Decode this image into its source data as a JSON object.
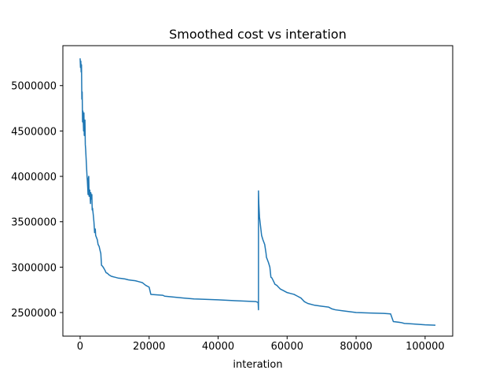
{
  "chart_data": {
    "type": "line",
    "title": "Smoothed cost vs interation",
    "xlabel": "interation",
    "ylabel": "",
    "xlim": [
      -5000,
      108000
    ],
    "ylim": [
      2240000,
      5440000
    ],
    "grid": false,
    "legend": "none",
    "x_ticks": [
      0,
      20000,
      40000,
      60000,
      80000,
      100000
    ],
    "x_tick_labels": [
      "0",
      "20000",
      "40000",
      "60000",
      "80000",
      "100000"
    ],
    "y_ticks": [
      2500000,
      3000000,
      3500000,
      4000000,
      4500000,
      5000000
    ],
    "y_tick_labels": [
      "2500000",
      "3000000",
      "3500000",
      "4000000",
      "4500000",
      "5000000"
    ],
    "series": [
      {
        "color": "#1f77b4",
        "x": [
          0,
          100,
          200,
          300,
          400,
          500,
          600,
          700,
          800,
          1000,
          1100,
          1200,
          1400,
          1500,
          1600,
          1800,
          2000,
          2100,
          2300,
          2400,
          2500,
          2600,
          2800,
          3000,
          3100,
          3200,
          3400,
          3500,
          3600,
          3800,
          4000,
          4200,
          4400,
          4500,
          4700,
          5000,
          5200,
          5500,
          5800,
          6000,
          6200,
          6500,
          7000,
          7400,
          7500,
          8000,
          8200,
          8600,
          9000,
          9500,
          10000,
          11000,
          12000,
          13000,
          14000,
          15000,
          16000,
          17000,
          18000,
          19000,
          20000,
          20500,
          24000,
          24500,
          30000,
          33000,
          40000,
          45000,
          51000,
          51600,
          51700,
          51700,
          51800,
          52000,
          52300,
          52600,
          53000,
          53500,
          53900,
          54000,
          54300,
          54600,
          55000,
          55300,
          55600,
          56000,
          56500,
          57000,
          57500,
          58000,
          59000,
          60000,
          61000,
          62000,
          63000,
          64000,
          65000,
          66000,
          68000,
          70000,
          72000,
          73000,
          74000,
          76000,
          78000,
          80000,
          84000,
          88000,
          90000,
          90700,
          90800,
          93000,
          94000,
          96000,
          98000,
          100000,
          103000
        ],
        "y": [
          5300000,
          5200000,
          5270000,
          5150000,
          5230000,
          4850000,
          4930000,
          4600000,
          4720000,
          4500000,
          4700000,
          4450000,
          4620000,
          4350000,
          4300000,
          4150000,
          4000000,
          3950000,
          3800000,
          3980000,
          4000000,
          3780000,
          3850000,
          3700000,
          3820000,
          3750000,
          3800000,
          3630000,
          3650000,
          3580000,
          3500000,
          3380000,
          3420000,
          3350000,
          3330000,
          3300000,
          3250000,
          3230000,
          3180000,
          3150000,
          3020000,
          3010000,
          2980000,
          2950000,
          2940000,
          2930000,
          2920000,
          2910000,
          2900000,
          2895000,
          2890000,
          2880000,
          2875000,
          2870000,
          2860000,
          2855000,
          2850000,
          2840000,
          2830000,
          2800000,
          2780000,
          2700000,
          2690000,
          2680000,
          2660000,
          2650000,
          2640000,
          2630000,
          2620000,
          2610000,
          2530000,
          3840000,
          3700000,
          3550000,
          3450000,
          3350000,
          3300000,
          3250000,
          3150000,
          3110000,
          3080000,
          3050000,
          3000000,
          2890000,
          2880000,
          2850000,
          2810000,
          2800000,
          2780000,
          2760000,
          2740000,
          2720000,
          2710000,
          2700000,
          2680000,
          2660000,
          2620000,
          2600000,
          2580000,
          2570000,
          2560000,
          2540000,
          2530000,
          2520000,
          2510000,
          2500000,
          2495000,
          2490000,
          2485000,
          2410000,
          2400000,
          2390000,
          2380000,
          2375000,
          2370000,
          2365000,
          2360000
        ]
      }
    ]
  }
}
